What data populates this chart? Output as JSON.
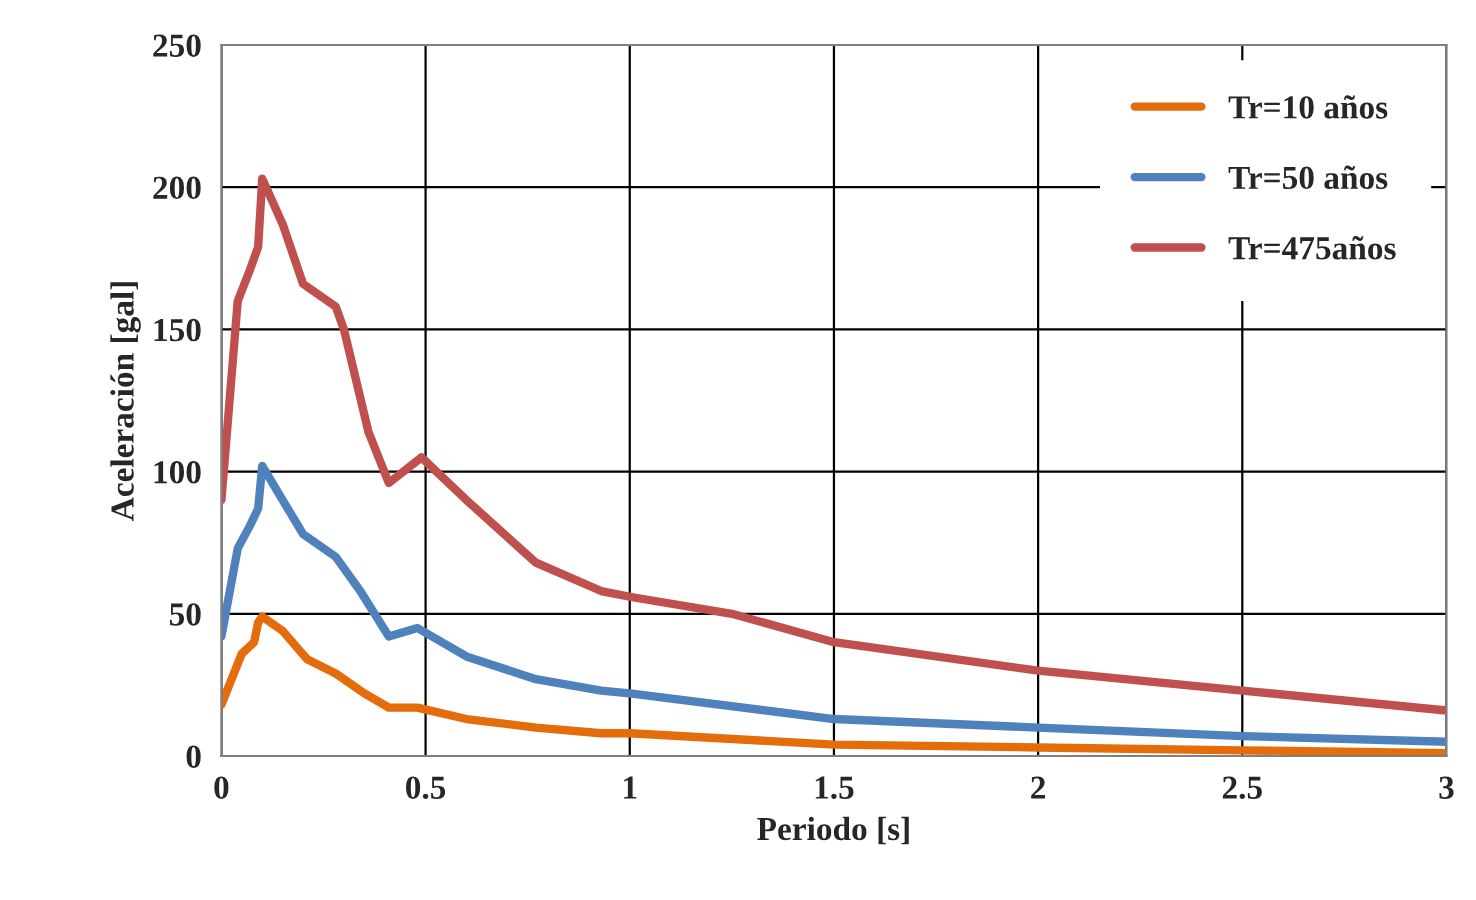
{
  "chart_data": {
    "type": "line",
    "xlabel": "Periodo [s]",
    "ylabel": "Aceleración [gal]",
    "xlim": [
      0,
      3
    ],
    "xticks": [
      0,
      0.5,
      1,
      1.5,
      2,
      2.5,
      3
    ],
    "ylim": [
      0,
      250
    ],
    "yticks": [
      0,
      50,
      100,
      150,
      200,
      250
    ],
    "grid": true,
    "legend": "top right",
    "marker": "none",
    "line_style": "solid",
    "series": [
      {
        "name": "Tr=10 años",
        "color": "#e46c0a",
        "x": [
          0,
          0.05,
          0.08,
          0.09,
          0.1,
          0.15,
          0.21,
          0.28,
          0.35,
          0.41,
          0.48,
          0.6,
          0.77,
          0.93,
          1,
          1.5,
          2,
          2.5,
          3
        ],
        "values": [
          18,
          36,
          40,
          47,
          49,
          44,
          34,
          29,
          22,
          17,
          17,
          13,
          10,
          8,
          8,
          4,
          3,
          2,
          1
        ]
      },
      {
        "name": "Tr=50 años",
        "color": "#4f81bd",
        "x": [
          0,
          0.04,
          0.07,
          0.09,
          0.1,
          0.15,
          0.2,
          0.28,
          0.34,
          0.41,
          0.48,
          0.6,
          0.77,
          0.93,
          1,
          1.5,
          2,
          2.5,
          3
        ],
        "values": [
          42,
          73,
          81,
          87,
          102,
          90,
          78,
          70,
          58,
          42,
          45,
          35,
          27,
          23,
          22,
          13,
          10,
          7,
          5
        ]
      },
      {
        "name": "Tr=475años",
        "color": "#c0504d",
        "x": [
          0,
          0.04,
          0.07,
          0.09,
          0.1,
          0.15,
          0.2,
          0.28,
          0.3,
          0.36,
          0.41,
          0.49,
          0.6,
          0.77,
          0.93,
          1,
          1.25,
          1.5,
          2,
          2.5,
          3
        ],
        "values": [
          90,
          160,
          171,
          179,
          203,
          187,
          166,
          158,
          150,
          114,
          96,
          105,
          90,
          68,
          58,
          56,
          50,
          40,
          30,
          23,
          16
        ]
      }
    ]
  }
}
